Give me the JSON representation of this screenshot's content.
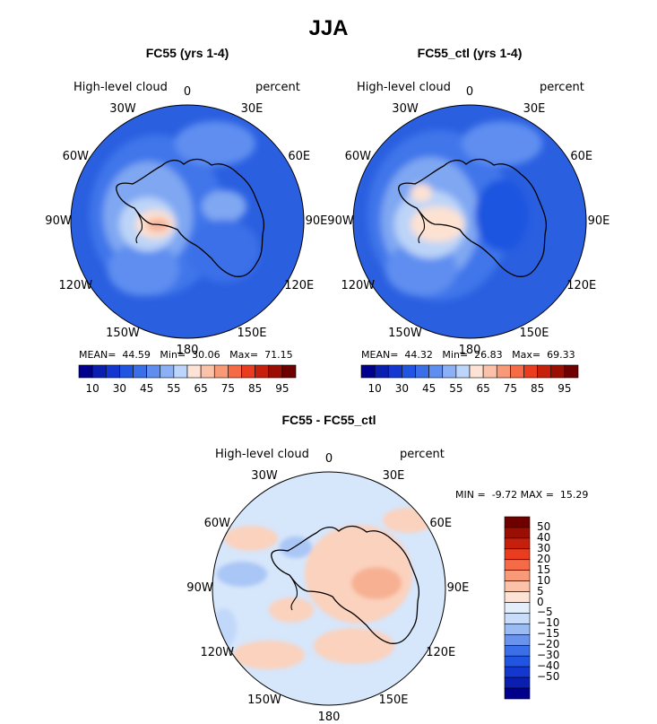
{
  "title": "JJA",
  "panels": [
    {
      "title": "FC55 (yrs 1-4)",
      "variable": "High-level cloud",
      "units": "percent",
      "stats": {
        "mean_label": "MEAN=",
        "mean": "44.59",
        "min_label": "Min=",
        "min": "30.06",
        "max_label": "Max=",
        "max": "71.15"
      }
    },
    {
      "title": "FC55_ctl (yrs 1-4)",
      "variable": "High-level cloud",
      "units": "percent",
      "stats": {
        "mean_label": "MEAN=",
        "mean": "44.32",
        "min_label": "Min=",
        "min": "26.83",
        "max_label": "Max=",
        "max": "69.33"
      }
    },
    {
      "title": "FC55 - FC55_ctl",
      "variable": "High-level cloud",
      "units": "percent",
      "stats": {
        "min_label": "MIN =",
        "min": "-9.72",
        "max_label": "MAX =",
        "max": "15.29"
      }
    }
  ],
  "longitude_labels": [
    "0",
    "30E",
    "60E",
    "90E",
    "120E",
    "150E",
    "180",
    "150W",
    "120W",
    "90W",
    "60W",
    "30W"
  ],
  "colorbar_abs": {
    "colors": [
      "#00008c",
      "#0a1fb0",
      "#1438cf",
      "#1f55e0",
      "#3a6fe8",
      "#5f8ef0",
      "#8cb0f5",
      "#bdd5fa",
      "#fde3d6",
      "#fbc2a9",
      "#f89a78",
      "#f56a47",
      "#ea3d1f",
      "#c6200c",
      "#9a0e04",
      "#6e0000"
    ],
    "tick_labels": [
      "10",
      "30",
      "45",
      "55",
      "65",
      "75",
      "85",
      "95"
    ]
  },
  "colorbar_diff": {
    "colors": [
      "#00008c",
      "#0a1fb0",
      "#1438cf",
      "#1f55e0",
      "#3a6fe8",
      "#6a93ee",
      "#9bbcf3",
      "#c9dcf9",
      "#e4eefa",
      "#fde3d6",
      "#fbc2a9",
      "#f89a78",
      "#f56a47",
      "#ea3d1f",
      "#c6200c",
      "#9a0e04",
      "#6e0000"
    ],
    "tick_labels": [
      "50",
      "40",
      "30",
      "20",
      "15",
      "10",
      "5",
      "0",
      "−5",
      "−10",
      "−15",
      "−20",
      "−30",
      "−40",
      "−50"
    ]
  },
  "map_colors": {
    "ocean_deep": "#2a5fe0",
    "ocean_mid": "#3f76ea",
    "ocean_light": "#7fa7f2",
    "pale_blue": "#bcd4f8",
    "pale_orange": "#fde2d2",
    "orange": "#f7b49a",
    "diff_base": "#d6e6fb",
    "diff_pos": "#fbd2bd",
    "diff_pos2": "#f7b092"
  }
}
